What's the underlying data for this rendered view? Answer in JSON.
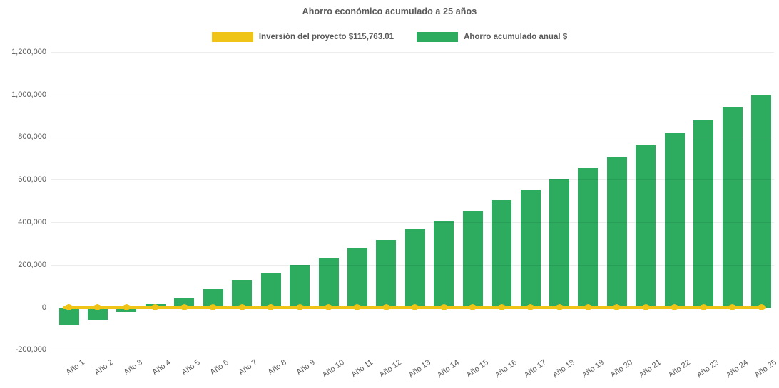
{
  "chart_data": {
    "type": "bar",
    "title": "Ahorro económico acumulado a 25 años",
    "xlabel": "",
    "ylabel": "",
    "ylim": [
      -200000,
      1200000
    ],
    "ytick_interval": 200000,
    "legend_position": "top",
    "grid": "very faint horizontal gridlines",
    "categories": [
      "Año 1",
      "Año 2",
      "Año 3",
      "Año 4",
      "Año 5",
      "Año 6",
      "Año 7",
      "Año 8",
      "Año 9",
      "Año 10",
      "Año 11",
      "Año 12",
      "Año 13",
      "Año 14",
      "Año 15",
      "Año 16",
      "Año 17",
      "Año 18",
      "Año 19",
      "Año 20",
      "Año 21",
      "Año 22",
      "Año 23",
      "Año 24",
      "Año 25"
    ],
    "y_ticks": [
      {
        "value": 1200000,
        "label": "1,200,000"
      },
      {
        "value": 1000000,
        "label": "1,000,000"
      },
      {
        "value": 800000,
        "label": "800,000"
      },
      {
        "value": 600000,
        "label": "600,000"
      },
      {
        "value": 400000,
        "label": "400,000"
      },
      {
        "value": 200000,
        "label": "200,000"
      },
      {
        "value": 0,
        "label": "0"
      },
      {
        "value": -200000,
        "label": "-200,000"
      }
    ],
    "series": [
      {
        "name": "Inversión del proyecto $115,763.01",
        "type": "line",
        "color": "#EFC416",
        "investment_amount_shown": "$115,763.01",
        "values": [
          0,
          0,
          0,
          0,
          0,
          0,
          0,
          0,
          0,
          0,
          0,
          0,
          0,
          0,
          0,
          0,
          0,
          0,
          0,
          0,
          0,
          0,
          0,
          0,
          0
        ]
      },
      {
        "name": "Ahorro acumulado anual $",
        "type": "bar",
        "color": "#2DAB5F",
        "values": [
          -86000,
          -57000,
          -21000,
          16000,
          44000,
          84000,
          124000,
          160000,
          199000,
          232000,
          278000,
          315000,
          365000,
          408000,
          453000,
          504000,
          552000,
          603000,
          654000,
          709000,
          763000,
          817000,
          879000,
          941000,
          1000000
        ]
      }
    ]
  },
  "legend": {
    "investment_label": "Inversión del proyecto $115,763.01",
    "savings_label": "Ahorro acumulado anual $"
  },
  "colors": {
    "investment_line": "#EFC416",
    "savings_bar": "#2DAB5F",
    "text": "#595959",
    "background": "#FFFFFF"
  }
}
